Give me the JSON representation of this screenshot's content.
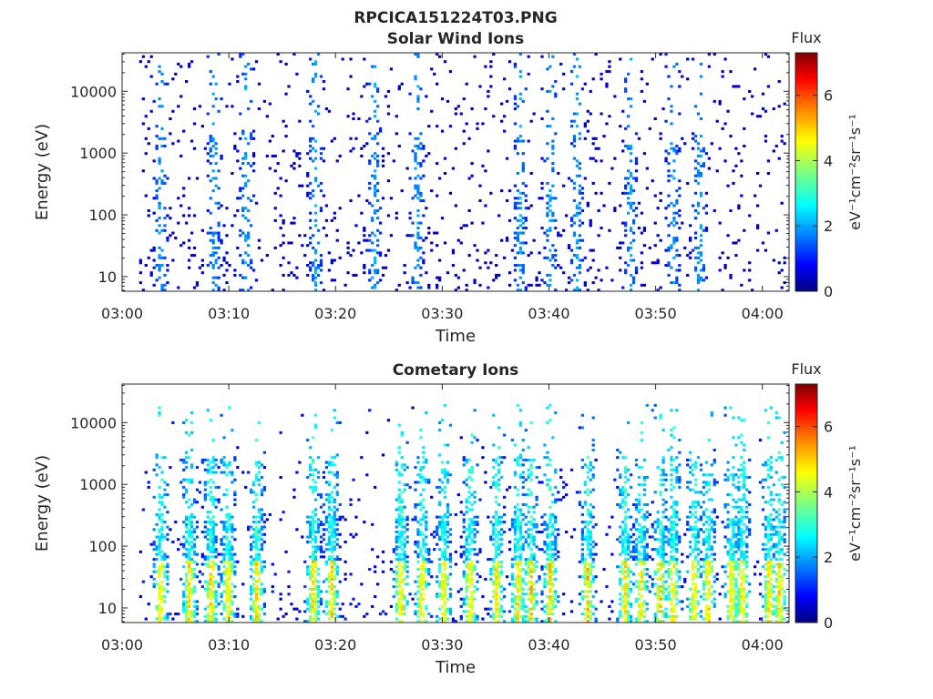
{
  "title": "RPCICA151224T03.PNG",
  "chart_data": [
    {
      "type": "heatmap",
      "title": "Solar Wind Ions",
      "xlabel": "Time",
      "ylabel": "Energy (eV)",
      "x_ticks": [
        "03:00",
        "03:10",
        "03:20",
        "03:30",
        "03:40",
        "03:50",
        "04:00"
      ],
      "xlim_minutes": [
        0,
        62.5
      ],
      "y_scale": "log",
      "y_ticks": [
        "10",
        "100",
        "1000",
        "10000"
      ],
      "ylim": [
        5.8,
        42000
      ],
      "colorbar": {
        "title": "Flux",
        "label": "eV⁻¹cm⁻²sr⁻¹s⁻¹",
        "ticks": [
          "0",
          "2",
          "4",
          "6"
        ],
        "range": [
          0,
          7.3
        ]
      },
      "colormap": [
        "#00007f",
        "#0000ff",
        "#007fff",
        "#00ffff",
        "#7fff7f",
        "#ffff00",
        "#ff7f00",
        "#ff0000",
        "#7f0000"
      ]
    },
    {
      "type": "heatmap",
      "title": "Cometary Ions",
      "xlabel": "Time",
      "ylabel": "Energy (eV)",
      "x_ticks": [
        "03:00",
        "03:10",
        "03:20",
        "03:30",
        "03:40",
        "03:50",
        "04:00"
      ],
      "xlim_minutes": [
        0,
        62.5
      ],
      "y_scale": "log",
      "y_ticks": [
        "10",
        "100",
        "1000",
        "10000"
      ],
      "ylim": [
        5.8,
        42000
      ],
      "colorbar": {
        "title": "Flux",
        "label": "eV⁻¹cm⁻²sr⁻¹s⁻¹",
        "ticks": [
          "0",
          "2",
          "4",
          "6"
        ],
        "range": [
          0,
          7.3
        ]
      },
      "colormap": [
        "#00007f",
        "#0000ff",
        "#007fff",
        "#00ffff",
        "#7fff7f",
        "#ffff00",
        "#ff7f00",
        "#ff0000",
        "#7f0000"
      ]
    }
  ]
}
